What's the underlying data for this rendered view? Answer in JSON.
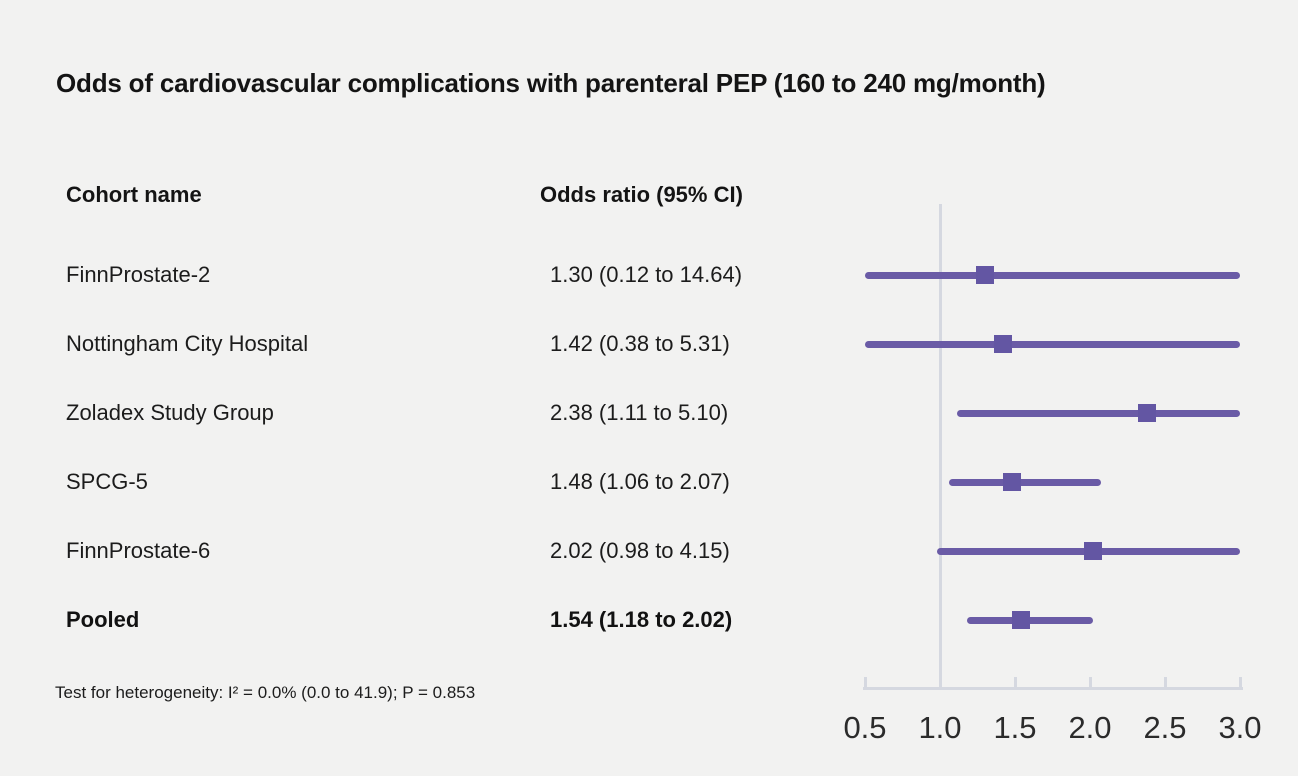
{
  "title": "Odds of cardiovascular complications with parenteral PEP (160 to 240 mg/month)",
  "columns": {
    "cohort": "Cohort name",
    "odds_ratio": "Odds ratio (95% CI)"
  },
  "footer": "Test for heterogeneity: I² = 0.0% (0.0 to 41.9); P = 0.853",
  "colors": {
    "background": "#f2f2f1",
    "text": "#141414",
    "ci_line": "#6a5ba6",
    "marker": "#6356a3",
    "axis": "#d5d8e0",
    "ref_line": "#d5d8e0",
    "axis_label": "#2b2b2b"
  },
  "chart_data": {
    "type": "forest",
    "title": "Odds of cardiovascular complications with parenteral PEP (160 to 240 mg/month)",
    "xlabel": "Odds ratio",
    "axis": {
      "min": 0.5,
      "max": 3.0,
      "ref": 1.0,
      "grid": false,
      "scale": "linear"
    },
    "ticks": [
      {
        "value": 0.5,
        "label": "0.5"
      },
      {
        "value": 1.0,
        "label": "1.0"
      },
      {
        "value": 1.5,
        "label": "1.5"
      },
      {
        "value": 2.0,
        "label": "2.0"
      },
      {
        "value": 2.5,
        "label": "2.5"
      },
      {
        "value": 3.0,
        "label": "3.0"
      }
    ],
    "rows": [
      {
        "label": "FinnProstate-2",
        "or_text": "1.30 (0.12 to 14.64)",
        "est": 1.3,
        "lo": 0.12,
        "hi": 14.64,
        "bold": false
      },
      {
        "label": "Nottingham City Hospital",
        "or_text": "1.42 (0.38 to 5.31)",
        "est": 1.42,
        "lo": 0.38,
        "hi": 5.31,
        "bold": false
      },
      {
        "label": "Zoladex Study Group",
        "or_text": "2.38 (1.11 to 5.10)",
        "est": 2.38,
        "lo": 1.11,
        "hi": 5.1,
        "bold": false
      },
      {
        "label": "SPCG-5",
        "or_text": "1.48 (1.06 to 2.07)",
        "est": 1.48,
        "lo": 1.06,
        "hi": 2.07,
        "bold": false
      },
      {
        "label": "FinnProstate-6",
        "or_text": "2.02 (0.98 to 4.15)",
        "est": 2.02,
        "lo": 0.98,
        "hi": 4.15,
        "bold": false
      },
      {
        "label": "Pooled",
        "or_text": "1.54 (1.18 to 2.02)",
        "est": 1.54,
        "lo": 1.18,
        "hi": 2.02,
        "bold": true
      }
    ],
    "heterogeneity_note": "Test for heterogeneity: I² = 0.0% (0.0 to 41.9); P = 0.853"
  }
}
